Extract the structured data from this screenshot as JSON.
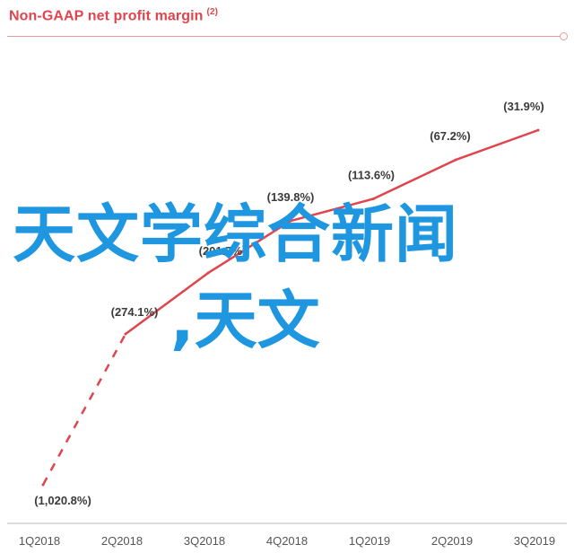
{
  "chart_data": {
    "type": "line",
    "title": "Non-GAAP net profit margin",
    "title_footnote": "(2)",
    "categories": [
      "1Q2018",
      "2Q2018",
      "3Q2018",
      "4Q2018",
      "1Q2019",
      "2Q2019",
      "3Q2019"
    ],
    "values": [
      -1020.8,
      -274.1,
      -201.7,
      -139.8,
      -113.6,
      -67.2,
      -31.9
    ],
    "value_labels": [
      "(1,020.8%)",
      "(274.1%)",
      "(201.7%)",
      "(139.8%)",
      "(113.6%)",
      "(67.2%)",
      "(31.9%)"
    ],
    "dashed_segment": [
      0,
      1
    ],
    "line_color": "#e0454e",
    "title_color": "#e0454e",
    "label_color": "#3a3a3a",
    "grid": false,
    "legend": "none"
  },
  "overlay": {
    "line1": "天文学综合新闻",
    "line2": ",天文",
    "color": "#1e96e0"
  }
}
